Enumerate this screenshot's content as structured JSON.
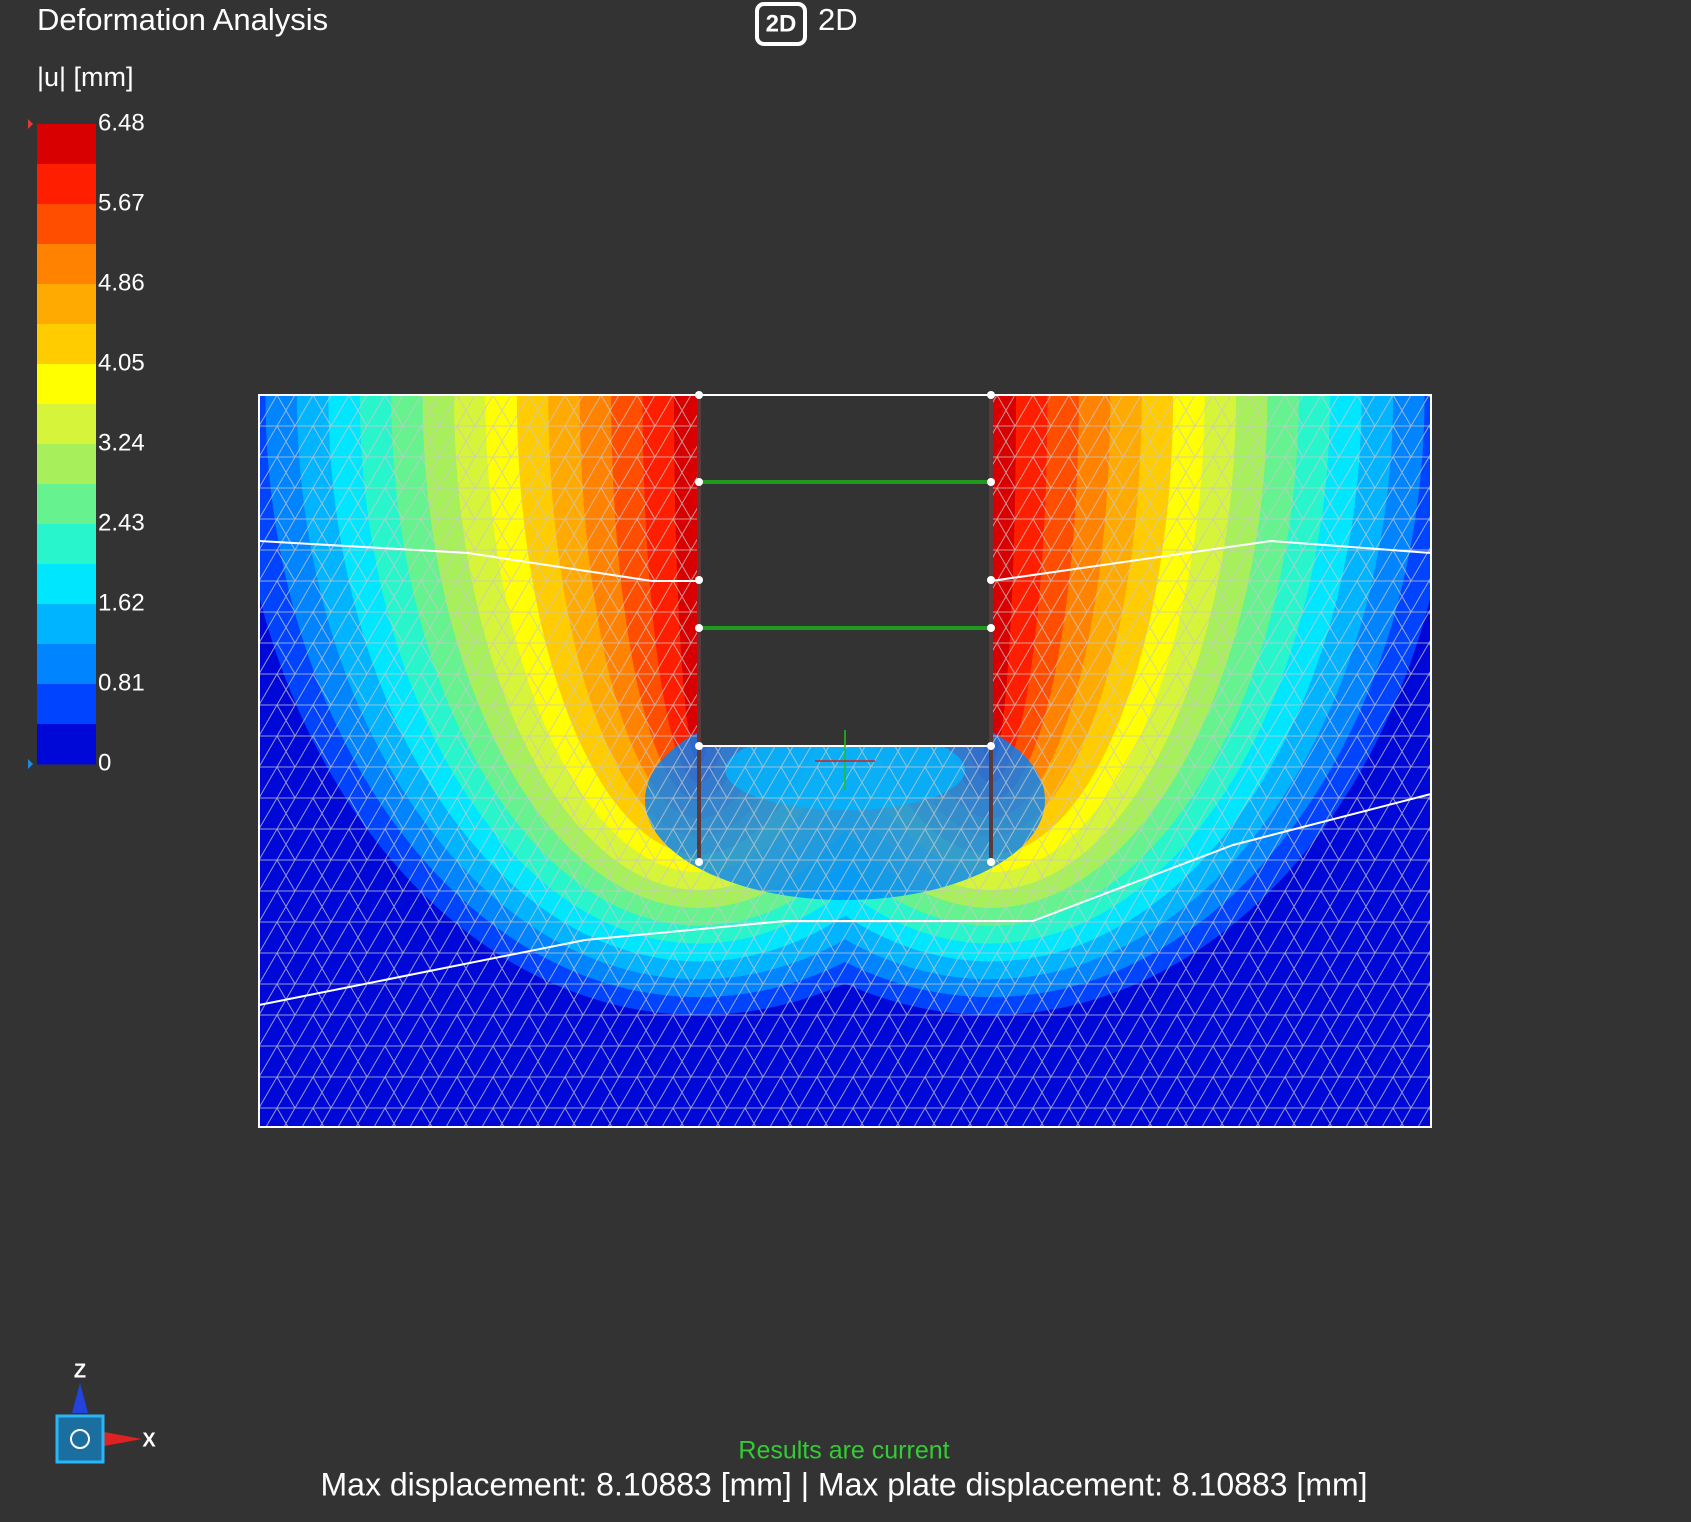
{
  "header": {
    "title": "Deformation Analysis",
    "mode_icon": "2D",
    "mode": "2D"
  },
  "legend": {
    "title": "|u| [mm]",
    "ticks": [
      6.48,
      5.67,
      4.86,
      4.05,
      3.24,
      2.43,
      1.62,
      0.81,
      0
    ],
    "colors": [
      "#d80000",
      "#ff1e00",
      "#ff4e00",
      "#ff8200",
      "#ffaa00",
      "#ffcc00",
      "#ffff00",
      "#d6f53a",
      "#a8ef5c",
      "#66f28e",
      "#28f5cc",
      "#00e6ff",
      "#00b4ff",
      "#0084ff",
      "#0044ff",
      "#0008d8"
    ]
  },
  "axes": {
    "z": "Z",
    "x": "X"
  },
  "status": {
    "message": "Results are current",
    "summary": "Max displacement: 8.10883 [mm] | Max plate displacement: 8.10883 [mm]"
  }
}
